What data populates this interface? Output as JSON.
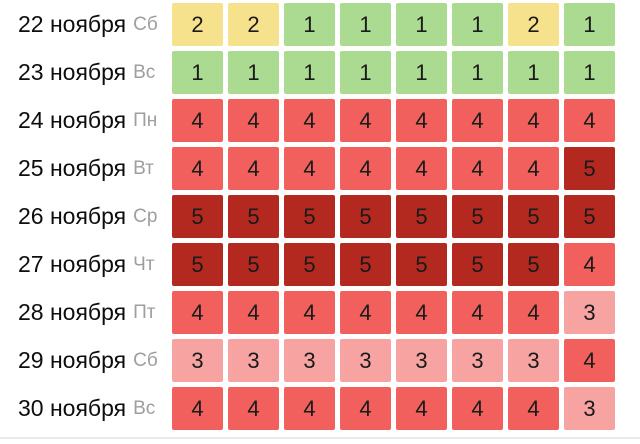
{
  "chart_data": {
    "type": "heatmap",
    "title": "",
    "value_range": [
      1,
      5
    ],
    "columns_count": 8,
    "level_colors": {
      "1": "#abdb91",
      "2": "#f6e28d",
      "3": "#f7a3a1",
      "4": "#f2605e",
      "5": "#b3281f"
    },
    "text_colors": {
      "date": "#0d0d0d",
      "day": "#9e9e9e",
      "cell": "#1a1a1a"
    },
    "rows": [
      {
        "date": "22 ноября",
        "day": "Сб",
        "values": [
          2,
          2,
          1,
          1,
          1,
          1,
          2,
          1
        ]
      },
      {
        "date": "23 ноября",
        "day": "Вс",
        "values": [
          1,
          1,
          1,
          1,
          1,
          1,
          1,
          1
        ]
      },
      {
        "date": "24 ноября",
        "day": "Пн",
        "values": [
          4,
          4,
          4,
          4,
          4,
          4,
          4,
          4
        ]
      },
      {
        "date": "25 ноября",
        "day": "Вт",
        "values": [
          4,
          4,
          4,
          4,
          4,
          4,
          4,
          5
        ]
      },
      {
        "date": "26 ноября",
        "day": "Ср",
        "values": [
          5,
          5,
          5,
          5,
          5,
          5,
          5,
          5
        ]
      },
      {
        "date": "27 ноября",
        "day": "Чт",
        "values": [
          5,
          5,
          5,
          5,
          5,
          5,
          5,
          4
        ]
      },
      {
        "date": "28 ноября",
        "day": "Пт",
        "values": [
          4,
          4,
          4,
          4,
          4,
          4,
          4,
          3
        ]
      },
      {
        "date": "29 ноября",
        "day": "Сб",
        "values": [
          3,
          3,
          3,
          3,
          3,
          3,
          3,
          4
        ]
      },
      {
        "date": "30 ноября",
        "day": "Вс",
        "values": [
          4,
          4,
          4,
          4,
          4,
          4,
          4,
          3
        ]
      }
    ]
  }
}
